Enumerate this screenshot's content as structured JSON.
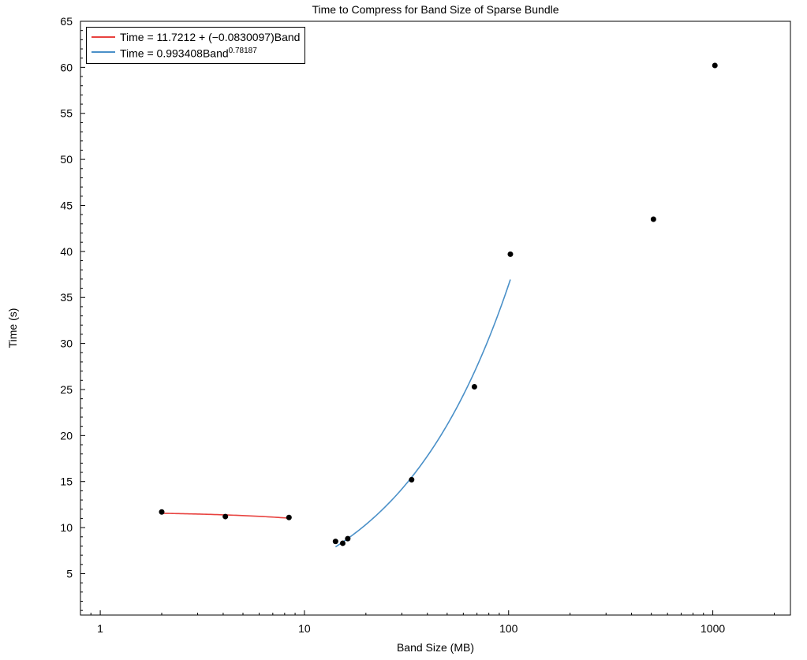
{
  "chart_data": {
    "type": "scatter",
    "title": "Time to Compress for Band Size of Sparse Bundle",
    "xlabel": "Band Size (MB)",
    "ylabel": "Time (s)",
    "xscale": "log",
    "xlim": [
      0.8,
      2400
    ],
    "ylim": [
      0.5,
      65
    ],
    "x_ticks": [
      1,
      10,
      100,
      1000
    ],
    "x_tick_labels": [
      "1",
      "10",
      "100",
      "1000"
    ],
    "y_ticks": [
      5,
      10,
      15,
      20,
      25,
      30,
      35,
      40,
      45,
      50,
      55,
      60,
      65
    ],
    "y_tick_labels": [
      "5",
      "10",
      "15",
      "20",
      "25",
      "30",
      "35",
      "40",
      "45",
      "50",
      "55",
      "60",
      "65"
    ],
    "grid": false,
    "legend_position": "top-left",
    "points": {
      "x": [
        2,
        4.1,
        8.4,
        14.2,
        15.4,
        16.3,
        33.5,
        68,
        102,
        512,
        1024
      ],
      "y": [
        11.7,
        11.2,
        11.1,
        8.5,
        8.3,
        8.8,
        15.2,
        25.3,
        39.7,
        43.5,
        60.2
      ],
      "color": "#000000"
    },
    "series": [
      {
        "name": "Time = 11.7212 + (−0.0830097)Band",
        "color": "#e8423f",
        "fit": "linear",
        "intercept": 11.7212,
        "slope": -0.0830097,
        "x_range": [
          2,
          8.4
        ]
      },
      {
        "name": "Time = 0.993408Band",
        "name_superscript": "0.78187",
        "color": "#4a90c8",
        "fit": "power",
        "coefficient": 0.993408,
        "exponent": 0.78187,
        "x_range": [
          14.2,
          102
        ]
      }
    ]
  }
}
